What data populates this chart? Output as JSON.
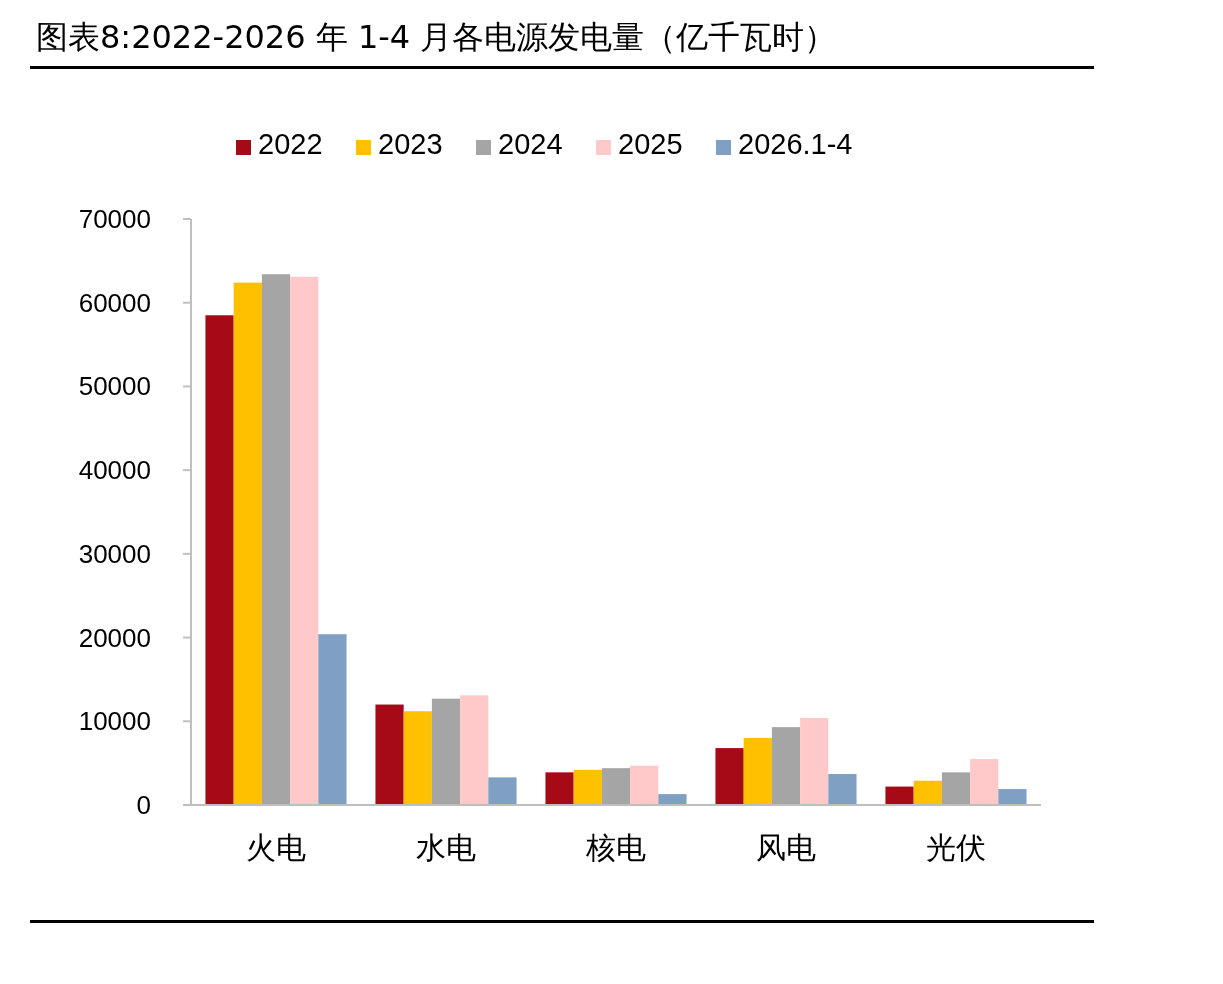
{
  "chart_data": {
    "type": "bar",
    "title": "图表8:2022-2026 年 1-4 月各电源发电量（亿千瓦时）",
    "categories": [
      "火电",
      "水电",
      "核电",
      "风电",
      "光伏"
    ],
    "series": [
      {
        "name": "2022",
        "color": "#a50a16",
        "values": [
          58500,
          12000,
          3900,
          6800,
          2200
        ]
      },
      {
        "name": "2023",
        "color": "#ffc000",
        "values": [
          62400,
          11200,
          4200,
          8000,
          2900
        ]
      },
      {
        "name": "2024",
        "color": "#a5a5a5",
        "values": [
          63400,
          12700,
          4400,
          9300,
          3900
        ]
      },
      {
        "name": "2025",
        "color": "#ffc9c9",
        "values": [
          63100,
          13100,
          4700,
          10400,
          5500
        ]
      },
      {
        "name": "2026.1-4",
        "color": "#7f9fc3",
        "values": [
          20400,
          3300,
          1300,
          3700,
          1900
        ]
      }
    ],
    "ylim": [
      0,
      70000
    ],
    "yticks": [
      0,
      10000,
      20000,
      30000,
      40000,
      50000,
      60000,
      70000
    ],
    "grid": false,
    "legend": "top"
  }
}
